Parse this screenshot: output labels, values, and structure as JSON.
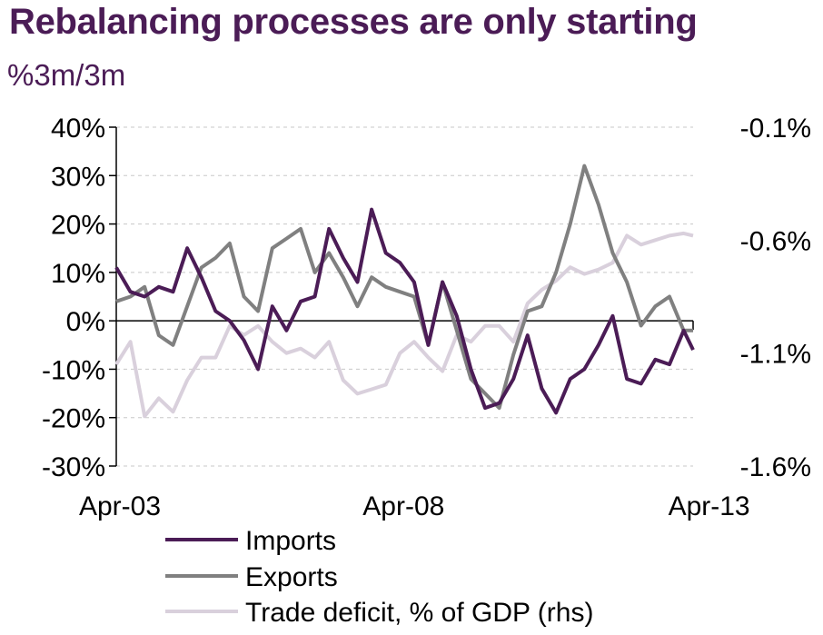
{
  "title": "Rebalancing processes are only starting",
  "subtitle": "%3m/3m",
  "chart_data": {
    "type": "line",
    "title": "Rebalancing processes are only starting",
    "subtitle": "%3m/3m",
    "x_tick_labels": [
      "Apr-03",
      "Apr-08",
      "Apr-13"
    ],
    "x_range": [
      "Apr-03",
      "Jun-13"
    ],
    "y_left": {
      "range": [
        -30,
        40
      ],
      "ticks": [
        40,
        30,
        20,
        10,
        0,
        -10,
        -20,
        -30
      ],
      "tick_labels": [
        "40%",
        "30%",
        "20%",
        "10%",
        "0%",
        "-10%",
        "-20%",
        "-30%"
      ]
    },
    "y_right": {
      "range": [
        -1.6,
        -0.1
      ],
      "ticks": [
        -0.1,
        -0.6,
        -1.1,
        -1.6
      ],
      "tick_labels": [
        "-0.1%",
        "-0.6%",
        "-1.1%",
        "-1.6%"
      ]
    },
    "grid": "horizontal dashed",
    "legend_position": "bottom",
    "colors": {
      "imports": "#4b1c56",
      "exports": "#808080",
      "trade_deficit": "#d9d0dc",
      "title": "#4b1c56"
    },
    "series": [
      {
        "name": "Imports",
        "axis": "left",
        "x": [
          "Apr-03",
          "Jul-03",
          "Oct-03",
          "Jan-04",
          "Apr-04",
          "Jul-04",
          "Oct-04",
          "Jan-05",
          "Apr-05",
          "Jul-05",
          "Oct-05",
          "Jan-06",
          "Apr-06",
          "Jul-06",
          "Oct-06",
          "Jan-07",
          "Apr-07",
          "Jul-07",
          "Oct-07",
          "Jan-08",
          "Apr-08",
          "Jul-08",
          "Oct-08",
          "Jan-09",
          "Apr-09",
          "Jul-09",
          "Oct-09",
          "Jan-10",
          "Apr-10",
          "Jul-10",
          "Oct-10",
          "Jan-11",
          "Apr-11",
          "Jul-11",
          "Oct-11",
          "Jan-12",
          "Apr-12",
          "Jul-12",
          "Oct-12",
          "Jan-13",
          "Apr-13",
          "Jun-13"
        ],
        "values": [
          11,
          6,
          5,
          7,
          6,
          15,
          9,
          2,
          0,
          -4,
          -10,
          3,
          -2,
          4,
          5,
          19,
          13,
          8,
          23,
          14,
          12,
          8,
          -5,
          8,
          1,
          -10,
          -18,
          -17,
          -12,
          -3,
          -14,
          -19,
          -12,
          -10,
          -5,
          1,
          -12,
          -13,
          -8,
          -9,
          -2,
          -6
        ]
      },
      {
        "name": "Exports",
        "axis": "left",
        "x": [
          "Apr-03",
          "Jul-03",
          "Oct-03",
          "Jan-04",
          "Apr-04",
          "Jul-04",
          "Oct-04",
          "Jan-05",
          "Apr-05",
          "Jul-05",
          "Oct-05",
          "Jan-06",
          "Apr-06",
          "Jul-06",
          "Oct-06",
          "Jan-07",
          "Apr-07",
          "Jul-07",
          "Oct-07",
          "Jan-08",
          "Apr-08",
          "Jul-08",
          "Oct-08",
          "Jan-09",
          "Apr-09",
          "Jul-09",
          "Oct-09",
          "Jan-10",
          "Apr-10",
          "Jul-10",
          "Oct-10",
          "Jan-11",
          "Apr-11",
          "Jul-11",
          "Oct-11",
          "Jan-12",
          "Apr-12",
          "Jul-12",
          "Oct-12",
          "Jan-13",
          "Apr-13",
          "Jun-13"
        ],
        "values": [
          4,
          5,
          7,
          -3,
          -5,
          3,
          11,
          13,
          16,
          5,
          2,
          15,
          17,
          19,
          10,
          14,
          9,
          3,
          9,
          7,
          6,
          5,
          -5,
          8,
          -2,
          -12,
          -15,
          -18,
          -7,
          2,
          3,
          10,
          20,
          32,
          24,
          14,
          8,
          -1,
          3,
          5,
          -2,
          -2
        ]
      },
      {
        "name": "Trade deficit, % of GDP (rhs)",
        "axis": "right",
        "x": [
          "Apr-03",
          "Jul-03",
          "Oct-03",
          "Jan-04",
          "Apr-04",
          "Jul-04",
          "Oct-04",
          "Jan-05",
          "Apr-05",
          "Jul-05",
          "Oct-05",
          "Jan-06",
          "Apr-06",
          "Jul-06",
          "Oct-06",
          "Jan-07",
          "Apr-07",
          "Jul-07",
          "Oct-07",
          "Jan-08",
          "Apr-08",
          "Jul-08",
          "Oct-08",
          "Jan-09",
          "Apr-09",
          "Jul-09",
          "Oct-09",
          "Jan-10",
          "Apr-10",
          "Jul-10",
          "Oct-10",
          "Jan-11",
          "Apr-11",
          "Jul-11",
          "Oct-11",
          "Jan-12",
          "Apr-12",
          "Jul-12",
          "Oct-12",
          "Jan-13",
          "Apr-13",
          "Jun-13"
        ],
        "values": [
          -1.15,
          -1.05,
          -1.38,
          -1.3,
          -1.36,
          -1.22,
          -1.12,
          -1.12,
          -0.98,
          -1.02,
          -0.98,
          -1.05,
          -1.1,
          -1.08,
          -1.12,
          -1.05,
          -1.22,
          -1.28,
          -1.26,
          -1.24,
          -1.1,
          -1.05,
          -1.12,
          -1.18,
          -1.02,
          -1.05,
          -0.98,
          -0.98,
          -1.05,
          -0.88,
          -0.82,
          -0.78,
          -0.72,
          -0.75,
          -0.73,
          -0.7,
          -0.58,
          -0.62,
          -0.6,
          -0.58,
          -0.57,
          -0.58
        ]
      }
    ]
  }
}
